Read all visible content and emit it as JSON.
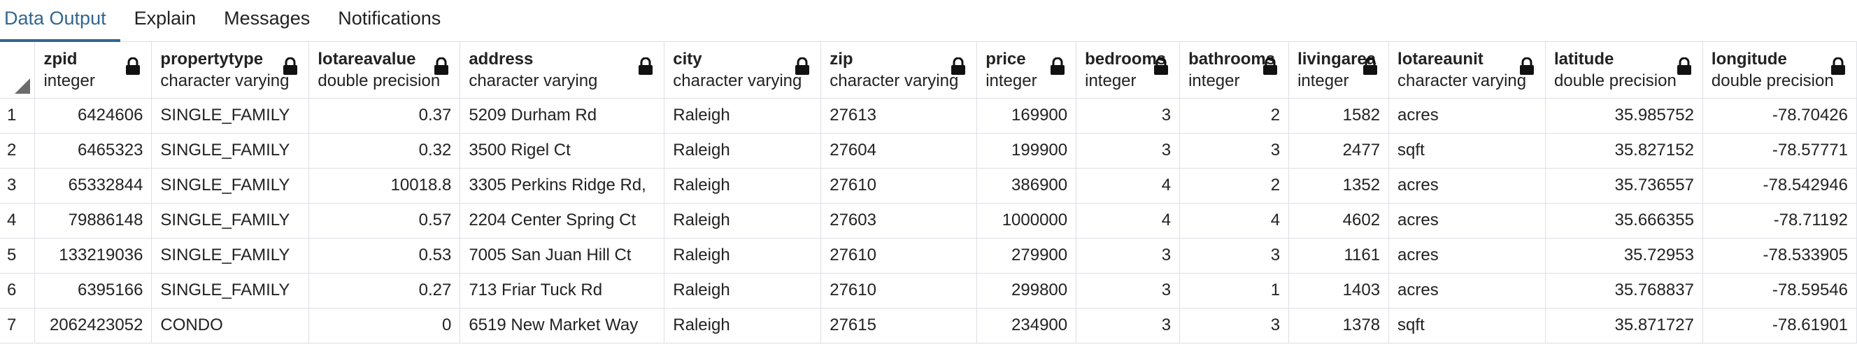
{
  "tabs": [
    {
      "label": "Data Output"
    },
    {
      "label": "Explain"
    },
    {
      "label": "Messages"
    },
    {
      "label": "Notifications"
    }
  ],
  "columns": [
    {
      "name": "zpid",
      "type": "integer",
      "align": "num"
    },
    {
      "name": "propertytype",
      "type": "character varying",
      "align": "text"
    },
    {
      "name": "lotareavalue",
      "type": "double precision",
      "align": "num"
    },
    {
      "name": "address",
      "type": "character varying",
      "align": "text"
    },
    {
      "name": "city",
      "type": "character varying",
      "align": "text"
    },
    {
      "name": "zip",
      "type": "character varying",
      "align": "text"
    },
    {
      "name": "price",
      "type": "integer",
      "align": "num"
    },
    {
      "name": "bedrooms",
      "type": "integer",
      "align": "num"
    },
    {
      "name": "bathrooms",
      "type": "integer",
      "align": "num"
    },
    {
      "name": "livingarea",
      "type": "integer",
      "align": "num"
    },
    {
      "name": "lotareaunit",
      "type": "character varying",
      "align": "text"
    },
    {
      "name": "latitude",
      "type": "double precision",
      "align": "num"
    },
    {
      "name": "longitude",
      "type": "double precision",
      "align": "num"
    }
  ],
  "rows": [
    {
      "n": "1",
      "cells": [
        "6424606",
        "SINGLE_FAMILY",
        "0.37",
        "5209 Durham Rd",
        "Raleigh",
        "27613",
        "169900",
        "3",
        "2",
        "1582",
        "acres",
        "35.985752",
        "-78.70426"
      ]
    },
    {
      "n": "2",
      "cells": [
        "6465323",
        "SINGLE_FAMILY",
        "0.32",
        "3500 Rigel Ct",
        "Raleigh",
        "27604",
        "199900",
        "3",
        "3",
        "2477",
        "sqft",
        "35.827152",
        "-78.57771"
      ]
    },
    {
      "n": "3",
      "cells": [
        "65332844",
        "SINGLE_FAMILY",
        "10018.8",
        "3305 Perkins Ridge Rd,",
        "Raleigh",
        "27610",
        "386900",
        "4",
        "2",
        "1352",
        "acres",
        "35.736557",
        "-78.542946"
      ]
    },
    {
      "n": "4",
      "cells": [
        "79886148",
        "SINGLE_FAMILY",
        "0.57",
        "2204 Center Spring Ct",
        "Raleigh",
        "27603",
        "1000000",
        "4",
        "4",
        "4602",
        "acres",
        "35.666355",
        "-78.71192"
      ]
    },
    {
      "n": "5",
      "cells": [
        "133219036",
        "SINGLE_FAMILY",
        "0.53",
        "7005 San Juan Hill Ct",
        "Raleigh",
        "27610",
        "279900",
        "3",
        "3",
        "1161",
        "acres",
        "35.72953",
        "-78.533905"
      ]
    },
    {
      "n": "6",
      "cells": [
        "6395166",
        "SINGLE_FAMILY",
        "0.27",
        "713 Friar Tuck Rd",
        "Raleigh",
        "27610",
        "299800",
        "3",
        "1",
        "1403",
        "acres",
        "35.768837",
        "-78.59546"
      ]
    },
    {
      "n": "7",
      "cells": [
        "2062423052",
        "CONDO",
        "0",
        "6519 New Market Way",
        "Raleigh",
        "27615",
        "234900",
        "3",
        "3",
        "1378",
        "sqft",
        "35.871727",
        "-78.61901"
      ]
    }
  ]
}
